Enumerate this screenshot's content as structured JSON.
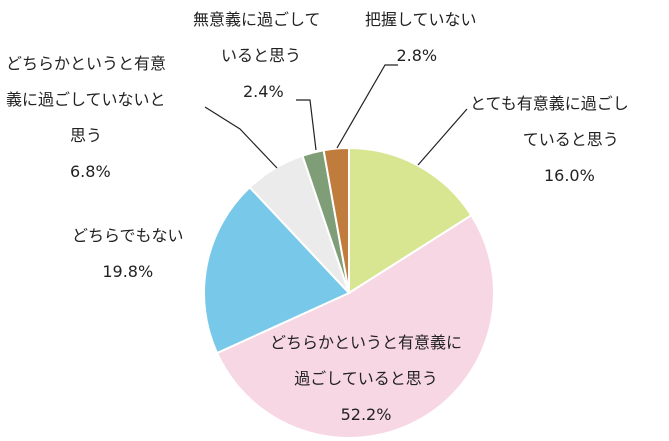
{
  "chart_data": {
    "type": "pie",
    "start_angle_deg": 0,
    "direction": "clockwise",
    "slices": [
      {
        "label_lines": [
          "とても有意義に過ごし",
          "ていると思う"
        ],
        "value": 16.0,
        "value_label": "16.0%",
        "color": "#d9e691"
      },
      {
        "label_lines": [
          "どちらかというと有意義に",
          "過ごしていると思う"
        ],
        "value": 52.2,
        "value_label": "52.2%",
        "color": "#f8d7e5"
      },
      {
        "label_lines": [
          "どちらでもない"
        ],
        "value": 19.8,
        "value_label": "19.8%",
        "color": "#78c8ea"
      },
      {
        "label_lines": [
          "どちらかというと有意",
          "義に過ごしていないと",
          "思う"
        ],
        "value": 6.8,
        "value_label": "6.8%",
        "color": "#ebebeb"
      },
      {
        "label_lines": [
          "無意義に過ごして",
          "いると思う"
        ],
        "value": 2.4,
        "value_label": "2.4%",
        "color": "#7f9e78"
      },
      {
        "label_lines": [
          "把握していない"
        ],
        "value": 2.8,
        "value_label": "2.8%",
        "color": "#c07c3c"
      }
    ]
  }
}
